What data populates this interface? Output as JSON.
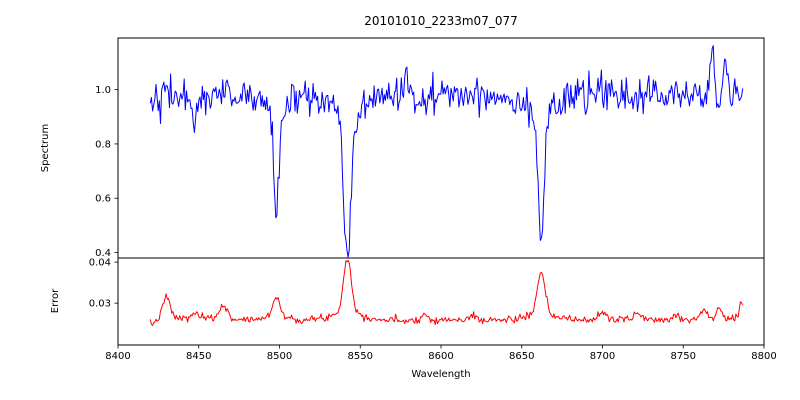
{
  "chart_data": {
    "type": "line",
    "title": "20101010_2233m07_077",
    "xlabel": "Wavelength",
    "xlim": [
      8400,
      8800
    ],
    "x_start": 8420,
    "x_end": 8787,
    "x_step": 0.7,
    "x_ticks": [
      8400,
      8450,
      8500,
      8550,
      8600,
      8650,
      8700,
      8750,
      8800
    ],
    "x_tick_labels": [
      "8400",
      "8450",
      "8500",
      "8550",
      "8600",
      "8650",
      "8700",
      "8750",
      "8800"
    ],
    "grid": false,
    "legend": "none",
    "subplots": [
      {
        "name": "spectrum",
        "ylabel": "Spectrum",
        "color": "#0000ff",
        "ylim": [
          0.38,
          1.19
        ],
        "y_ticks": [
          0.4,
          0.6,
          0.8,
          1.0
        ],
        "y_tick_labels": [
          "0.4",
          "0.6",
          "0.8",
          "1.0"
        ],
        "baseline": 0.98,
        "noise_sigma": 0.032,
        "absorption_lines": [
          {
            "center": 8446.5,
            "depth": 0.12,
            "width": 1.0
          },
          {
            "center": 8498.0,
            "depth": 0.4,
            "width": 1.6
          },
          {
            "center": 8542.1,
            "depth": 0.56,
            "width": 2.2
          },
          {
            "center": 8662.1,
            "depth": 0.47,
            "width": 1.9
          }
        ],
        "emission_spikes": [
          {
            "center": 8578.0,
            "height": 0.1,
            "width": 1.0
          },
          {
            "center": 8768.0,
            "height": 0.16,
            "width": 1.1
          },
          {
            "center": 8776.0,
            "height": 0.12,
            "width": 1.0
          }
        ]
      },
      {
        "name": "error",
        "ylabel": "Error",
        "color": "#ff0000",
        "ylim": [
          0.0198,
          0.041
        ],
        "y_ticks": [
          0.03,
          0.04
        ],
        "y_tick_labels": [
          "0.03",
          "0.04"
        ],
        "baseline": 0.0258,
        "noise_sigma": 0.00045,
        "peaks": [
          {
            "center": 8420,
            "height": -0.0012,
            "width": 3.0
          },
          {
            "center": 8430,
            "height": 0.005,
            "width": 2.2
          },
          {
            "center": 8448,
            "height": 0.0015,
            "width": 2.0
          },
          {
            "center": 8465,
            "height": 0.0035,
            "width": 2.0
          },
          {
            "center": 8498,
            "height": 0.005,
            "width": 2.3
          },
          {
            "center": 8542,
            "height": 0.0132,
            "width": 2.4
          },
          {
            "center": 8590,
            "height": 0.0012,
            "width": 2.0
          },
          {
            "center": 8620,
            "height": 0.001,
            "width": 2.0
          },
          {
            "center": 8662,
            "height": 0.0098,
            "width": 2.4
          },
          {
            "center": 8700,
            "height": 0.0018,
            "width": 2.0
          },
          {
            "center": 8722,
            "height": 0.0018,
            "width": 2.0
          },
          {
            "center": 8745,
            "height": 0.0012,
            "width": 2.0
          },
          {
            "center": 8762,
            "height": 0.0022,
            "width": 1.8
          },
          {
            "center": 8772,
            "height": 0.0028,
            "width": 1.5
          },
          {
            "center": 8786,
            "height": 0.0035,
            "width": 1.2
          }
        ]
      }
    ]
  }
}
